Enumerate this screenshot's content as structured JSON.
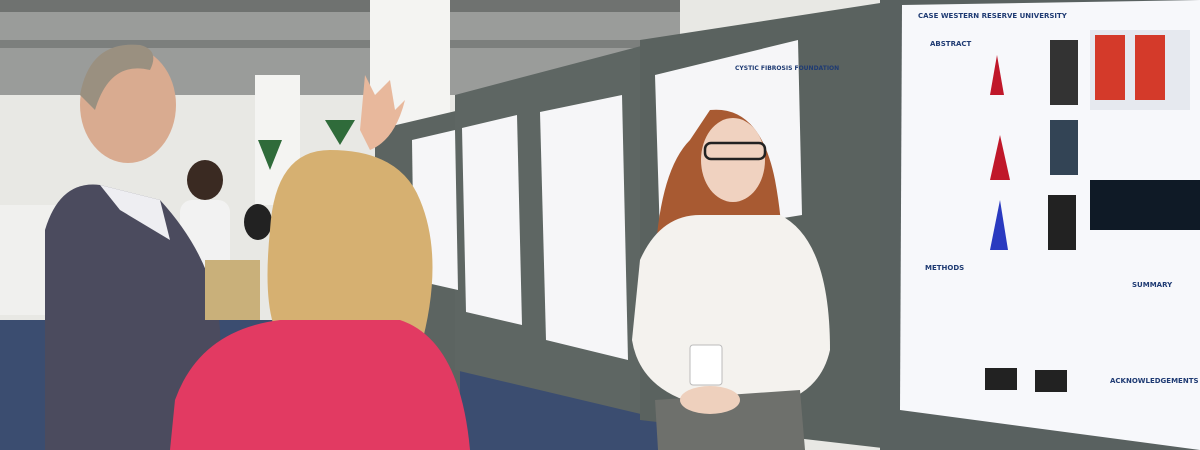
{
  "poster": {
    "institution": "CASE WESTERN RESERVE UNIVERSITY",
    "sponsor": "CYSTIC FIBROSIS FOUNDATION",
    "sections": [
      "ABSTRACT",
      "METHODS",
      "SUMMARY",
      "ACKNOWLEDGEMENTS"
    ]
  }
}
